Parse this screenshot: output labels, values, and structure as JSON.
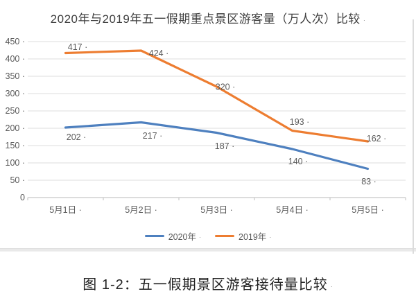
{
  "title": "2020年与2019年五一假期重点景区游客量（万人次）比较",
  "caption": "图 1-2：五一假期景区游客接待量比较",
  "formatting_mark": "·",
  "colors": {
    "series_2020_blue": "#4E80BF",
    "series_2019_orange": "#ED7D31",
    "gridline": "#e4e4e4",
    "axis_line": "#c8c8c8",
    "axis_text": "#595959",
    "data_label_text": "#595959",
    "title_text": "#3f3f3f",
    "caption_text": "#222222"
  },
  "legend": {
    "position": "bottom-center",
    "items": [
      {
        "label": "2020年",
        "color": "#4E80BF"
      },
      {
        "label": "2019年",
        "color": "#ED7D31"
      }
    ]
  },
  "chart_data": {
    "type": "line",
    "title": "2020年与2019年五一假期重点景区游客量（万人次）比较",
    "categories": [
      "5月1日",
      "5月2日",
      "5月3日",
      "5月4日",
      "5月5日"
    ],
    "series": [
      {
        "name": "2020年",
        "color": "#4E80BF",
        "values": [
          202,
          217,
          187,
          140,
          83
        ]
      },
      {
        "name": "2019年",
        "color": "#ED7D31",
        "values": [
          417,
          424,
          320,
          193,
          162
        ]
      }
    ],
    "xlabel": "",
    "ylabel": "",
    "ylim": [
      0,
      450
    ],
    "ytick_interval": 50,
    "grid": true,
    "data_labels_visible": true,
    "legend_position": "bottom"
  }
}
